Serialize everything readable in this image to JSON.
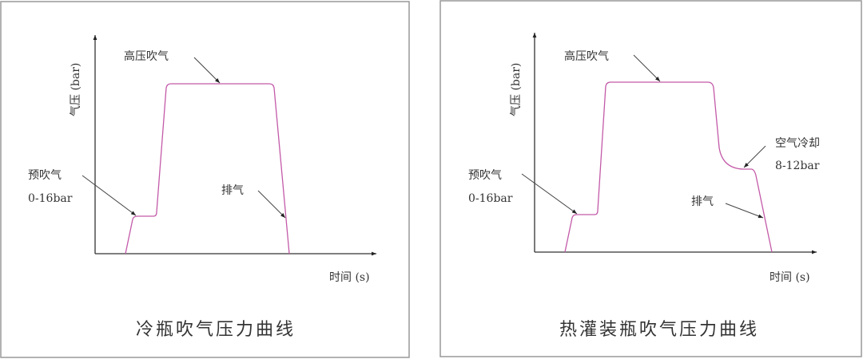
{
  "colors": {
    "curve": "#c35aa8",
    "frame": "#999999"
  },
  "panels": [
    {
      "title": "冷瓶吹气压力曲线",
      "y_label": "气压 (bar)",
      "x_label": "时间 (s)",
      "annotations": {
        "high": "高压吹气",
        "pre_line1": "预吹气",
        "pre_line2": "0-16bar",
        "exhaust": "排气"
      }
    },
    {
      "title": "热灌装瓶吹气压力曲线",
      "y_label": "气压 (bar)",
      "x_label": "时间 (s)",
      "annotations": {
        "high": "高压吹气",
        "pre_line1": "预吹气",
        "pre_line2": "0-16bar",
        "cool_line1": "空气冷却",
        "cool_line2": "8-12bar",
        "exhaust": "排气"
      }
    }
  ]
}
